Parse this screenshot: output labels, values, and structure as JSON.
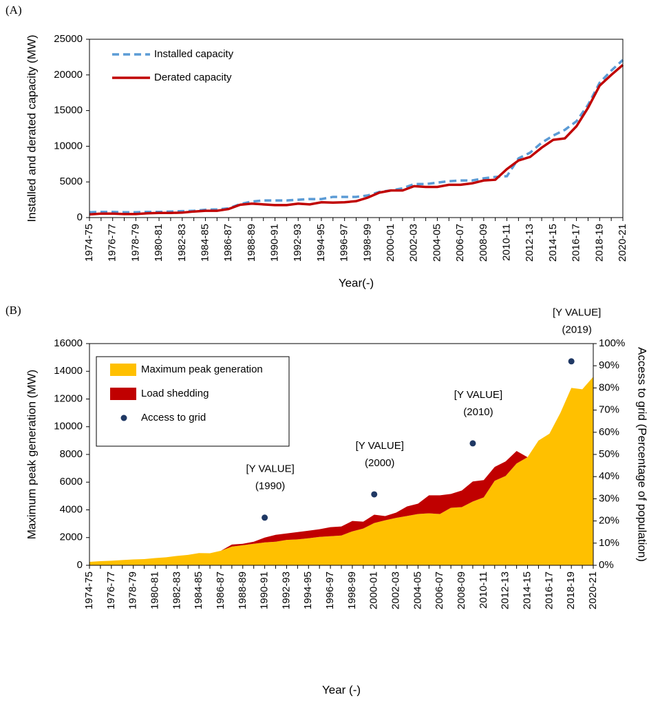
{
  "chart_data": [
    {
      "type": "line",
      "panel": "(A)",
      "y_label": "Installed and derated capacity (MW)",
      "x_label": "Year(-)",
      "categories": [
        "1974-75",
        null,
        "1976-77",
        null,
        "1978-79",
        null,
        "1980-81",
        null,
        "1982-83",
        null,
        "1984-85",
        null,
        "1986-87",
        null,
        "1988-89",
        null,
        "1990-91",
        null,
        "1992-93",
        null,
        "1994-95",
        null,
        "1996-97",
        null,
        "1998-99",
        null,
        "2000-01",
        null,
        "2002-03",
        null,
        "2004-05",
        null,
        "2006-07",
        null,
        "2008-09",
        null,
        "2010-11",
        null,
        "2012-13",
        null,
        "2014-15",
        null,
        "2016-17",
        null,
        "2018-19",
        null,
        "2020-21"
      ],
      "ylim": [
        0,
        25000
      ],
      "yticks": [
        0,
        5000,
        10000,
        15000,
        20000,
        25000
      ],
      "grid": false,
      "legend": "upper left",
      "series": [
        {
          "name": "Installed capacity",
          "color": "#5b9bd5",
          "line_style": "dashed",
          "values": [
            750,
            800,
            800,
            750,
            750,
            800,
            800,
            850,
            900,
            950,
            1100,
            1150,
            1300,
            1900,
            2250,
            2400,
            2400,
            2400,
            2500,
            2600,
            2600,
            2900,
            2900,
            2900,
            3100,
            3600,
            3800,
            4100,
            4700,
            4700,
            4900,
            5100,
            5200,
            5200,
            5500,
            5700,
            5800,
            8300,
            9100,
            10500,
            11500,
            12300,
            13500,
            15800,
            18900,
            20600,
            22100
          ]
        },
        {
          "name": "Derated capacity",
          "color": "#c00000",
          "line_style": "solid",
          "values": [
            450,
            550,
            550,
            500,
            500,
            600,
            650,
            650,
            700,
            850,
            950,
            950,
            1200,
            1800,
            1950,
            1850,
            1750,
            1750,
            1950,
            1850,
            2150,
            2100,
            2150,
            2300,
            2800,
            3500,
            3800,
            3800,
            4400,
            4300,
            4300,
            4600,
            4600,
            4800,
            5200,
            5300,
            6800,
            8000,
            8500,
            9800,
            10900,
            11100,
            12800,
            15400,
            18500,
            20000,
            21400
          ]
        }
      ]
    },
    {
      "type": "area",
      "panel": "(B)",
      "y_label": "Maximum peak generation (MW)",
      "y2_label": "Access to grid (Percentage of population)",
      "x_label": "Year (-)",
      "categories": [
        "1974-75",
        null,
        "1976-77",
        null,
        "1978-79",
        null,
        "1980-81",
        null,
        "1982-83",
        null,
        "1984-85",
        null,
        "1986-87",
        null,
        "1988-89",
        null,
        "1990-91",
        null,
        "1992-93",
        null,
        "1994-95",
        null,
        "1996-97",
        null,
        "1998-99",
        null,
        "2000-01",
        null,
        "2002-03",
        null,
        "2004-05",
        null,
        "2006-07",
        null,
        "2008-09",
        null,
        "2010-11",
        null,
        "2012-13",
        null,
        "2014-15",
        null,
        "2016-17",
        null,
        "2018-19",
        null,
        "2020-21"
      ],
      "ylim": [
        0,
        16000
      ],
      "yticks": [
        0,
        2000,
        4000,
        6000,
        8000,
        10000,
        12000,
        14000,
        16000
      ],
      "y2lim": [
        0,
        100
      ],
      "y2ticks": [
        {
          "value": 0,
          "label": "0%"
        },
        {
          "value": 10,
          "label": "10%"
        },
        {
          "value": 20,
          "label": "20%"
        },
        {
          "value": 30,
          "label": "30%"
        },
        {
          "value": 40,
          "label": "40%"
        },
        {
          "value": 50,
          "label": "50%"
        },
        {
          "value": 60,
          "label": "60%"
        },
        {
          "value": 70,
          "label": "70%"
        },
        {
          "value": 80,
          "label": "80%"
        },
        {
          "value": 90,
          "label": "90%"
        },
        {
          "value": 100,
          "label": "100%"
        }
      ],
      "grid": false,
      "stacked": true,
      "legend": "upper left",
      "series": [
        {
          "name": "Maximum peak generation",
          "type": "area",
          "color": "#ffc000",
          "values": [
            250,
            300,
            330,
            380,
            420,
            450,
            520,
            580,
            680,
            750,
            880,
            870,
            1050,
            1350,
            1450,
            1550,
            1650,
            1700,
            1830,
            1870,
            1950,
            2050,
            2100,
            2150,
            2450,
            2650,
            3050,
            3250,
            3420,
            3560,
            3700,
            3750,
            3700,
            4150,
            4200,
            4600,
            4900,
            6100,
            6450,
            7350,
            7800,
            9000,
            9500,
            11000,
            12800,
            12700,
            13600
          ]
        },
        {
          "name": "Load shedding",
          "type": "area",
          "color": "#c00000",
          "values": [
            0,
            0,
            0,
            0,
            0,
            0,
            0,
            0,
            0,
            0,
            0,
            0,
            0,
            150,
            100,
            150,
            350,
            500,
            470,
            530,
            550,
            550,
            650,
            650,
            750,
            500,
            600,
            300,
            380,
            690,
            750,
            1300,
            1350,
            1000,
            1200,
            1450,
            1250,
            1000,
            1050,
            900,
            0,
            null,
            null,
            null,
            null,
            null,
            null
          ]
        },
        {
          "name": "Access to grid",
          "type": "scatter",
          "axis": "y2",
          "color": "#1f3864",
          "values": [
            null,
            null,
            null,
            null,
            null,
            null,
            null,
            null,
            null,
            null,
            null,
            null,
            null,
            null,
            null,
            null,
            21.5,
            null,
            null,
            null,
            null,
            null,
            null,
            null,
            null,
            null,
            32,
            null,
            null,
            null,
            null,
            null,
            null,
            null,
            null,
            55,
            null,
            null,
            null,
            null,
            null,
            null,
            null,
            null,
            92,
            null,
            null
          ]
        }
      ],
      "annotations": [
        {
          "label": "[Y VALUE]",
          "year": "(1990)"
        },
        {
          "label": "[Y VALUE]",
          "year": "(2000)"
        },
        {
          "label": "[Y VALUE]",
          "year": "(2010)"
        },
        {
          "label": "[Y VALUE]",
          "year": "(2019)"
        }
      ]
    }
  ]
}
